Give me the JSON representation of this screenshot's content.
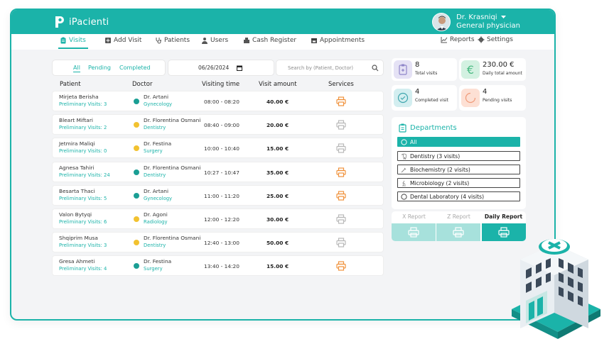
{
  "app": {
    "name": "iPacienti"
  },
  "user": {
    "name": "Dr. Krasniqi",
    "role": "General physician"
  },
  "nav": {
    "visits": "Visits",
    "add_visit": "Add Visit",
    "patients": "Patients",
    "users": "Users",
    "cash_register": "Cash Register",
    "appointments": "Appointments",
    "reports": "Reports",
    "settings": "Settings"
  },
  "filters": {
    "all": "All",
    "pending": "Pending",
    "completed": "Completed"
  },
  "date_filter": {
    "value": "06/26/2024"
  },
  "search": {
    "placeholder": "Search by (Patient, Doctor)"
  },
  "table": {
    "headers": {
      "patient": "Patient",
      "doctor": "Doctor",
      "time": "Visiting time",
      "amount": "Visit amount",
      "services": "Services"
    },
    "rows": [
      {
        "patient": "Mirjeta Berisha",
        "visits": "Preliminary Visits: 3",
        "doctor": "Dr. Artani",
        "department": "Gynecology",
        "status_color": "#1a9e94",
        "time": "08:00 - 08:20",
        "amount": "40.00 €",
        "printer_color": "#f0923c"
      },
      {
        "patient": "Bleart Miftari",
        "visits": "Preliminary Visits: 2",
        "doctor": "Dr. Florentina Osmani",
        "department": "Dentistry",
        "status_color": "#f2c230",
        "time": "08:40 - 09:00",
        "amount": "20.00 €",
        "printer_color": "#b9b9b9"
      },
      {
        "patient": "Jetmira Maliqi",
        "visits": "Preliminary Visits: 0",
        "doctor": "Dr. Festina",
        "department": "Surgery",
        "status_color": "#f2c230",
        "time": "10:00 - 10:40",
        "amount": "15.00 €",
        "printer_color": "#b9b9b9"
      },
      {
        "patient": "Agnesa Tahiri",
        "visits": "Preliminary Visits: 24",
        "doctor": "Dr. Florentina Osmani",
        "department": "Dentistry",
        "status_color": "#1a9e94",
        "time": "10:27 - 10:47",
        "amount": "35.00 €",
        "printer_color": "#f0923c"
      },
      {
        "patient": "Besarta Thaci",
        "visits": "Preliminary Visits: 5",
        "doctor": "Dr. Artani",
        "department": "Gynecology",
        "status_color": "#1a9e94",
        "time": "11:00 - 11:20",
        "amount": "25.00 €",
        "printer_color": "#f0923c"
      },
      {
        "patient": "Valon Bytyqi",
        "visits": "Preliminary Visits: 6",
        "doctor": "Dr. Agoni",
        "department": "Radiology",
        "status_color": "#f2c230",
        "time": "12:00 - 12:20",
        "amount": "30.00 €",
        "printer_color": "#b9b9b9"
      },
      {
        "patient": "Shqiprim Musa",
        "visits": "Preliminary Visits: 3",
        "doctor": "Dr. Florentina Osmani",
        "department": "Dentistry",
        "status_color": "#f2c230",
        "time": "12:40 - 13:00",
        "amount": "50.00 €",
        "printer_color": "#b9b9b9"
      },
      {
        "patient": "Gresa Ahmeti",
        "visits": "Preliminary Visits: 4",
        "doctor": "Dr. Festina",
        "department": "Surgery",
        "status_color": "#1a9e94",
        "time": "13:40 - 14:20",
        "amount": "15.00 €",
        "printer_color": "#f0923c"
      }
    ]
  },
  "stats": {
    "total_visits": {
      "value": "8",
      "label": "Total visits",
      "icon": "clipboard-icon"
    },
    "daily_total": {
      "value": "230.00 €",
      "label": "Daily total amount",
      "icon": "euro-icon"
    },
    "completed": {
      "value": "4",
      "label": "Completed visit",
      "icon": "check-icon"
    },
    "pending": {
      "value": "4",
      "label": "Pending visits",
      "icon": "loading-icon"
    }
  },
  "departments": {
    "title": "Departments",
    "items": [
      {
        "label": "All",
        "icon": "radio-icon"
      },
      {
        "label": "Dentistry (3 visits)",
        "icon": "tooth-icon"
      },
      {
        "label": "Biochemistry (2 visits)",
        "icon": "pipette-icon"
      },
      {
        "label": "Microbiology (2 visits)",
        "icon": "microscope-icon"
      },
      {
        "label": "Dental Laboratory (4 visits)",
        "icon": "radio-icon"
      }
    ]
  },
  "reports": {
    "x": "X Report",
    "z": "Z Report",
    "daily": "Daily Report"
  },
  "colors": {
    "accent": "#1bb3a9",
    "pending": "#f2c230",
    "completed": "#1a9e94",
    "printer_active": "#f0923c"
  }
}
